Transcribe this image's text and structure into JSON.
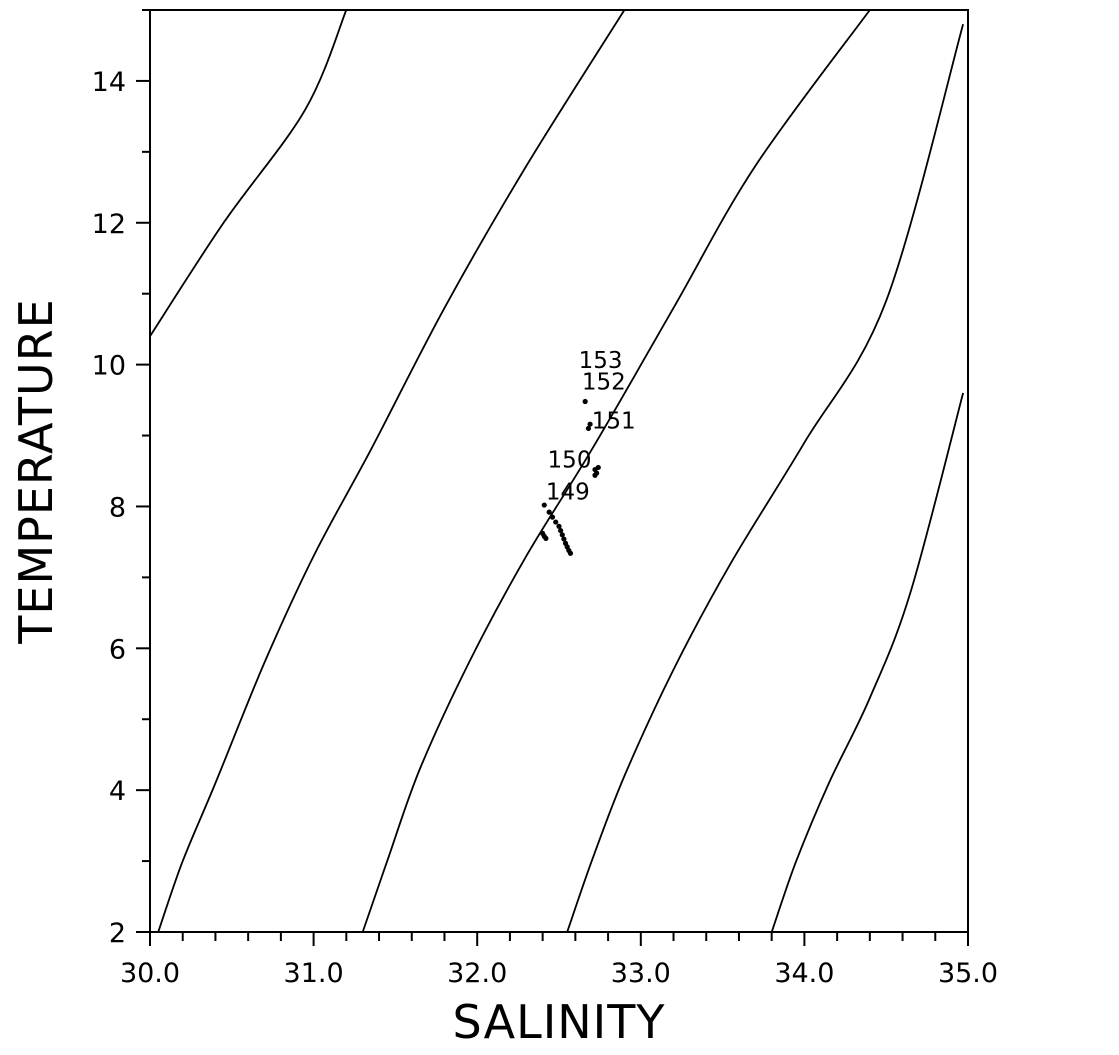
{
  "chart_data": {
    "type": "scatter",
    "title": "",
    "xlabel": "SALINITY",
    "ylabel": "TEMPERATURE",
    "xlim": [
      30.0,
      35.0
    ],
    "ylim": [
      2,
      15
    ],
    "x_ticks": [
      "30.0",
      "31.0",
      "32.0",
      "33.0",
      "34.0",
      "35.0"
    ],
    "y_ticks": [
      "2",
      "4",
      "6",
      "8",
      "10",
      "12",
      "14"
    ],
    "grid": false,
    "background_contours": [
      {
        "points": [
          [
            30.0,
            10.4
          ],
          [
            30.45,
            12.0
          ],
          [
            30.95,
            13.6
          ],
          [
            31.2,
            15.0
          ]
        ]
      },
      {
        "points": [
          [
            30.05,
            2.0
          ],
          [
            30.2,
            3.0
          ],
          [
            30.4,
            4.1
          ],
          [
            30.7,
            5.8
          ],
          [
            31.0,
            7.3
          ],
          [
            31.35,
            8.8
          ],
          [
            31.8,
            10.8
          ],
          [
            32.3,
            12.8
          ],
          [
            32.9,
            15.0
          ]
        ]
      },
      {
        "points": [
          [
            31.3,
            2.0
          ],
          [
            31.45,
            3.0
          ],
          [
            31.65,
            4.3
          ],
          [
            31.95,
            5.8
          ],
          [
            32.3,
            7.3
          ],
          [
            32.7,
            8.8
          ],
          [
            33.2,
            10.8
          ],
          [
            33.7,
            12.8
          ],
          [
            34.4,
            15.0
          ]
        ]
      },
      {
        "points": [
          [
            32.55,
            2.0
          ],
          [
            32.7,
            3.0
          ],
          [
            32.9,
            4.2
          ],
          [
            33.2,
            5.7
          ],
          [
            33.55,
            7.2
          ],
          [
            34.0,
            8.9
          ],
          [
            34.5,
            10.9
          ],
          [
            34.97,
            14.8
          ]
        ]
      },
      {
        "points": [
          [
            33.8,
            2.0
          ],
          [
            33.95,
            3.0
          ],
          [
            34.15,
            4.1
          ],
          [
            34.4,
            5.3
          ],
          [
            34.65,
            6.8
          ],
          [
            34.97,
            9.6
          ]
        ]
      }
    ],
    "series": [
      {
        "points": [
          [
            32.4,
            7.62
          ],
          [
            32.41,
            7.58
          ],
          [
            32.42,
            7.55
          ],
          [
            32.41,
            8.02
          ],
          [
            32.44,
            7.92
          ],
          [
            32.46,
            7.85
          ],
          [
            32.48,
            7.78
          ],
          [
            32.5,
            7.72
          ],
          [
            32.51,
            7.66
          ],
          [
            32.52,
            7.6
          ],
          [
            32.53,
            7.54
          ],
          [
            32.54,
            7.48
          ],
          [
            32.55,
            7.43
          ],
          [
            32.56,
            7.38
          ],
          [
            32.57,
            7.34
          ],
          [
            32.72,
            8.52
          ],
          [
            32.73,
            8.47
          ],
          [
            32.72,
            8.44
          ],
          [
            32.74,
            8.55
          ],
          [
            32.69,
            9.16
          ],
          [
            32.68,
            9.1
          ],
          [
            32.66,
            9.48
          ]
        ]
      }
    ],
    "annotations": [
      {
        "text": "153",
        "x": 32.62,
        "y": 9.95
      },
      {
        "text": "152",
        "x": 32.64,
        "y": 9.65
      },
      {
        "text": "151",
        "x": 32.7,
        "y": 9.1
      },
      {
        "text": "150",
        "x": 32.43,
        "y": 8.55
      },
      {
        "text": "149",
        "x": 32.42,
        "y": 8.1
      }
    ]
  }
}
